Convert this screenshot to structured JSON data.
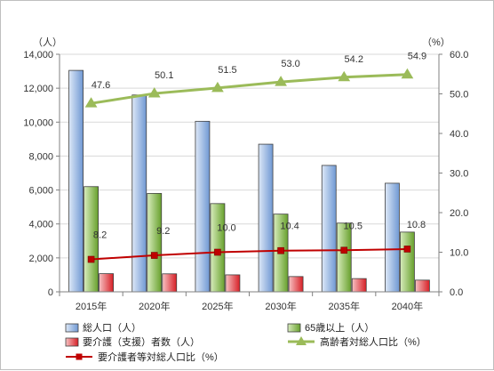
{
  "chart_data": {
    "type": "bar",
    "title": "",
    "categories": [
      "2015年",
      "2020年",
      "2025年",
      "2030年",
      "2035年",
      "2040年"
    ],
    "units": {
      "left": "（人）",
      "right": "（%）"
    },
    "y_left": {
      "min": 0,
      "max": 14000,
      "step": 2000,
      "tick_labels": [
        "0",
        "2,000",
        "4,000",
        "6,000",
        "8,000",
        "10,000",
        "12,000",
        "14,000"
      ]
    },
    "y_right": {
      "min": 0,
      "max": 60,
      "step": 10,
      "tick_labels": [
        "0.0",
        "10.0",
        "20.0",
        "30.0",
        "40.0",
        "50.0",
        "60.0"
      ]
    },
    "grid": "horizontal",
    "legend_position": "bottom",
    "series": [
      {
        "name": "総人口（人）",
        "type": "bar",
        "axis": "left",
        "color": "#8fb4e3",
        "values": [
          13050,
          11600,
          10050,
          8700,
          7450,
          6400
        ]
      },
      {
        "name": "65歳以上（人）",
        "type": "bar",
        "axis": "left",
        "color": "#8cc34a",
        "values": [
          6200,
          5800,
          5200,
          4580,
          4050,
          3520
        ]
      },
      {
        "name": "要介護（支援）者数（人）",
        "type": "bar",
        "axis": "left",
        "color": "#e8292e",
        "values": [
          1070,
          1060,
          1000,
          900,
          780,
          690
        ]
      },
      {
        "name": "高齢者対総人口比（%）",
        "type": "line",
        "axis": "right",
        "color": "#9bbb59",
        "marker": "triangle",
        "values": [
          47.6,
          50.1,
          51.5,
          53.0,
          54.2,
          54.9
        ],
        "labels": [
          "47.6",
          "50.1",
          "51.5",
          "53.0",
          "54.2",
          "54.9"
        ]
      },
      {
        "name": "要介護者等対総人口比（%）",
        "type": "line",
        "axis": "right",
        "color": "#c00000",
        "marker": "square",
        "values": [
          8.2,
          9.2,
          10.0,
          10.4,
          10.5,
          10.8
        ],
        "labels": [
          "8.2",
          "9.2",
          "10.0",
          "10.4",
          "10.5",
          "10.8"
        ]
      }
    ]
  }
}
